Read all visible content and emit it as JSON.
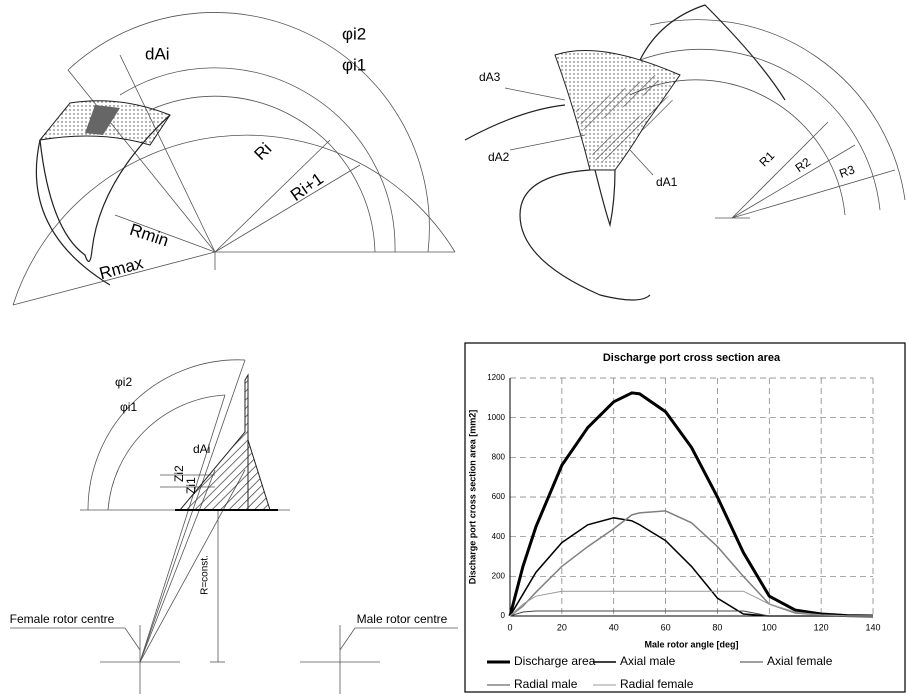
{
  "diagram_lobe": {
    "labels": [
      "φi2",
      "φi1",
      "dAi",
      "Ri",
      "Ri+1",
      "Rmin",
      "Rmax"
    ]
  },
  "diagram_port": {
    "labels": [
      "dA3",
      "dA2",
      "dA1",
      "R1",
      "R2",
      "R3"
    ]
  },
  "diagram_section": {
    "labels": [
      "φi2",
      "φi1",
      "dAi",
      "Zi2",
      "Zi1",
      "R=const.",
      "Female rotor centre",
      "Male rotor centre"
    ]
  },
  "chart_data": {
    "type": "line",
    "title": "Discharge port cross section area",
    "x_label": "Male rotor angle [deg]",
    "y_label": "Discharge port cross section area [mm2]",
    "x": [
      0,
      5,
      10,
      20,
      30,
      40,
      47,
      50,
      60,
      70,
      80,
      90,
      100,
      110,
      120,
      130,
      140
    ],
    "series": [
      {
        "name": "Discharge area",
        "color": "#000000",
        "line_width": 3,
        "values": [
          0,
          250,
          450,
          760,
          950,
          1080,
          1125,
          1120,
          1030,
          850,
          600,
          320,
          100,
          30,
          10,
          2,
          0
        ]
      },
      {
        "name": "Axial male",
        "color": "#000000",
        "line_width": 1.5,
        "values": [
          0,
          110,
          220,
          370,
          460,
          495,
          480,
          460,
          380,
          250,
          90,
          10,
          0,
          0,
          0,
          0,
          0
        ]
      },
      {
        "name": "Axial female",
        "color": "#808080",
        "line_width": 1.5,
        "values": [
          0,
          50,
          120,
          250,
          350,
          440,
          510,
          520,
          530,
          470,
          350,
          200,
          60,
          15,
          5,
          0,
          0
        ]
      },
      {
        "name": "Radial male",
        "color": "#444444",
        "line_width": 1,
        "values": [
          0,
          20,
          25,
          25,
          25,
          25,
          25,
          25,
          25,
          25,
          25,
          25,
          0,
          0,
          0,
          0,
          0
        ]
      },
      {
        "name": "Radial female",
        "color": "#999999",
        "line_width": 1,
        "values": [
          0,
          60,
          100,
          125,
          125,
          125,
          125,
          125,
          125,
          125,
          125,
          125,
          60,
          20,
          5,
          0,
          0
        ]
      }
    ],
    "xlim": [
      0,
      140
    ],
    "xticks": [
      0,
      20,
      40,
      60,
      80,
      100,
      120,
      140
    ],
    "ylim": [
      0,
      1200
    ],
    "yticks": [
      0,
      200,
      400,
      600,
      800,
      1000,
      1200
    ],
    "grid": true
  }
}
